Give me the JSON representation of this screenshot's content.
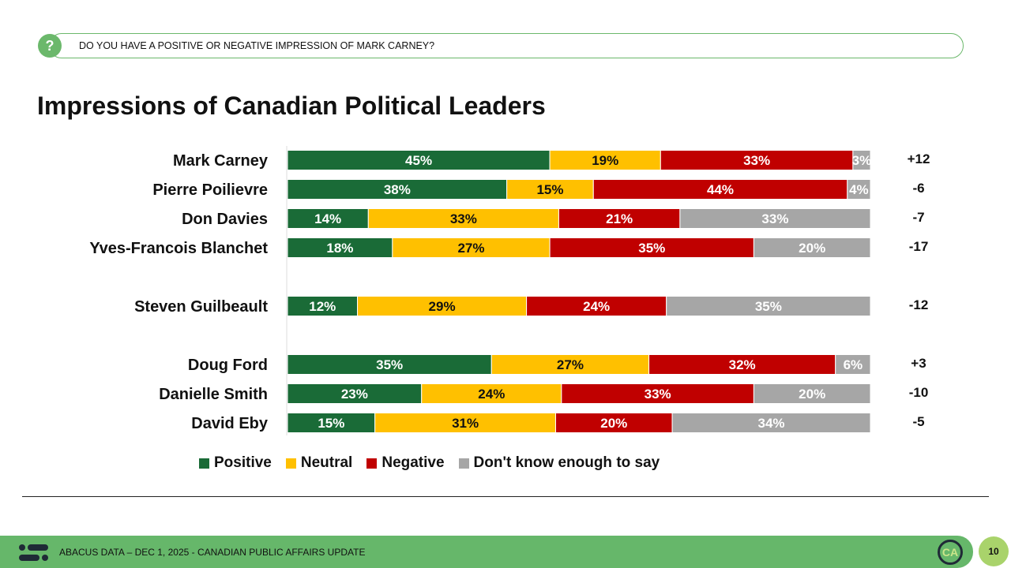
{
  "header": {
    "question": "DO YOU HAVE A POSITIVE OR NEGATIVE IMPRESSION OF MARK CARNEY?",
    "icon": "question-icon"
  },
  "title": "Impressions of Canadian Political Leaders",
  "chart_data": {
    "type": "bar",
    "orientation": "horizontal-stacked-100",
    "title": "Impressions of Canadian Political Leaders",
    "series_names": [
      "Positive",
      "Neutral",
      "Negative",
      "Don't know enough to say"
    ],
    "colors": [
      "#1a6b37",
      "#ffc000",
      "#c00000",
      "#a6a6a6"
    ],
    "label_colors": [
      "#ffffff",
      "#111111",
      "#ffffff",
      "#ffffff"
    ],
    "rows": [
      {
        "name": "Mark Carney",
        "group": 0,
        "values": [
          45,
          19,
          33,
          3
        ],
        "labels": [
          "45%",
          "19%",
          "33%",
          "3%"
        ],
        "net": "+12"
      },
      {
        "name": "Pierre Poilievre",
        "group": 0,
        "values": [
          38,
          15,
          44,
          4
        ],
        "labels": [
          "38%",
          "15%",
          "44%",
          "4%"
        ],
        "net": "-6"
      },
      {
        "name": "Don Davies",
        "group": 0,
        "values": [
          14,
          33,
          21,
          33
        ],
        "labels": [
          "14%",
          "33%",
          "21%",
          "33%"
        ],
        "net": "-7"
      },
      {
        "name": "Yves-Francois Blanchet",
        "group": 0,
        "values": [
          18,
          27,
          35,
          20
        ],
        "labels": [
          "18%",
          "27%",
          "35%",
          "20%"
        ],
        "net": "-17"
      },
      {
        "name": "Steven Guilbeault",
        "group": 1,
        "values": [
          12,
          29,
          24,
          35
        ],
        "labels": [
          "12%",
          "29%",
          "24%",
          "35%"
        ],
        "net": "-12"
      },
      {
        "name": "Doug Ford",
        "group": 2,
        "values": [
          35,
          27,
          32,
          6
        ],
        "labels": [
          "35%",
          "27%",
          "32%",
          "6%"
        ],
        "net": "+3"
      },
      {
        "name": "Danielle Smith",
        "group": 2,
        "values": [
          23,
          24,
          33,
          20
        ],
        "labels": [
          "23%",
          "24%",
          "33%",
          "20%"
        ],
        "net": "-10"
      },
      {
        "name": "David Eby",
        "group": 2,
        "values": [
          15,
          31,
          20,
          34
        ],
        "labels": [
          "15%",
          "31%",
          "20%",
          "34%"
        ],
        "net": "-5"
      }
    ],
    "legend_position": "bottom"
  },
  "legend": [
    "Positive",
    "Neutral",
    "Negative",
    "Don't know enough to say"
  ],
  "footer": {
    "text": "ABACUS DATA – DEC 1, 2025 - CANADIAN PUBLIC AFFAIRS UPDATE",
    "page": "10",
    "badge": "CA"
  }
}
